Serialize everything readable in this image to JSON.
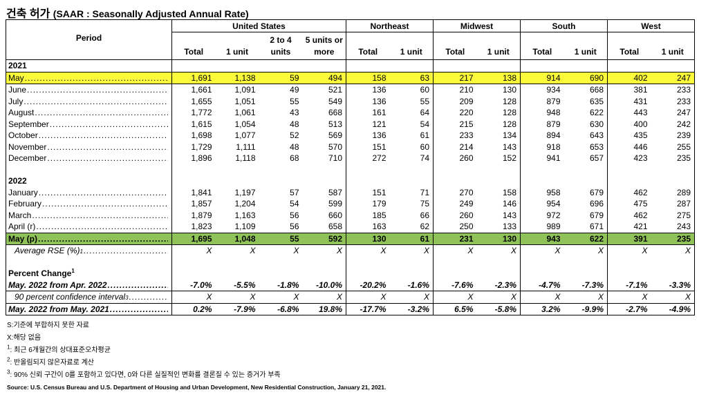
{
  "title": "건축 허가",
  "subtitle": "(SAAR : Seasonally Adjusted Annual Rate)",
  "table": {
    "period_header": "Period",
    "groups": [
      {
        "name": "United States",
        "columns": [
          "Total",
          "1 unit",
          "2 to 4 units",
          "5 units or more"
        ]
      },
      {
        "name": "Northeast",
        "columns": [
          "Total",
          "1 unit"
        ]
      },
      {
        "name": "Midwest",
        "columns": [
          "Total",
          "1 unit"
        ]
      },
      {
        "name": "South",
        "columns": [
          "Total",
          "1 unit"
        ]
      },
      {
        "name": "West",
        "columns": [
          "Total",
          "1 unit"
        ]
      }
    ],
    "sections": [
      {
        "heading": "2021",
        "rows": [
          {
            "label": "May",
            "highlight": "#fbfb3c",
            "values": [
              "1,691",
              "1,138",
              "59",
              "494",
              "158",
              "63",
              "217",
              "138",
              "914",
              "690",
              "402",
              "247"
            ]
          },
          {
            "label": "June",
            "values": [
              "1,661",
              "1,091",
              "49",
              "521",
              "136",
              "60",
              "210",
              "130",
              "934",
              "668",
              "381",
              "233"
            ]
          },
          {
            "label": "July",
            "values": [
              "1,655",
              "1,051",
              "55",
              "549",
              "136",
              "55",
              "209",
              "128",
              "879",
              "635",
              "431",
              "233"
            ]
          },
          {
            "label": "August",
            "values": [
              "1,772",
              "1,061",
              "43",
              "668",
              "161",
              "64",
              "220",
              "128",
              "948",
              "622",
              "443",
              "247"
            ]
          },
          {
            "label": "September",
            "values": [
              "1,615",
              "1,054",
              "48",
              "513",
              "121",
              "54",
              "215",
              "128",
              "879",
              "630",
              "400",
              "242"
            ]
          },
          {
            "label": "October",
            "values": [
              "1,698",
              "1,077",
              "52",
              "569",
              "136",
              "61",
              "233",
              "134",
              "894",
              "643",
              "435",
              "239"
            ]
          },
          {
            "label": "November",
            "values": [
              "1,729",
              "1,111",
              "48",
              "570",
              "151",
              "60",
              "214",
              "143",
              "918",
              "653",
              "446",
              "255"
            ]
          },
          {
            "label": "December",
            "values": [
              "1,896",
              "1,118",
              "68",
              "710",
              "272",
              "74",
              "260",
              "152",
              "941",
              "657",
              "423",
              "235"
            ]
          }
        ]
      },
      {
        "heading": "2022",
        "rows": [
          {
            "label": "January",
            "values": [
              "1,841",
              "1,197",
              "57",
              "587",
              "151",
              "71",
              "270",
              "158",
              "958",
              "679",
              "462",
              "289"
            ]
          },
          {
            "label": "February",
            "values": [
              "1,857",
              "1,204",
              "54",
              "599",
              "179",
              "75",
              "249",
              "146",
              "954",
              "696",
              "475",
              "287"
            ]
          },
          {
            "label": "March",
            "values": [
              "1,879",
              "1,163",
              "56",
              "660",
              "185",
              "66",
              "260",
              "143",
              "972",
              "679",
              "462",
              "275"
            ]
          },
          {
            "label": "April (r)",
            "values": [
              "1,823",
              "1,109",
              "56",
              "658",
              "163",
              "62",
              "250",
              "133",
              "989",
              "671",
              "421",
              "243"
            ]
          },
          {
            "label": "May (p)",
            "highlight": "#8fc35a",
            "bold": true,
            "values": [
              "1,695",
              "1,048",
              "55",
              "592",
              "130",
              "61",
              "231",
              "130",
              "943",
              "622",
              "391",
              "235"
            ]
          },
          {
            "label": "Average RSE (%)",
            "sup": "1",
            "italic": true,
            "indent": true,
            "values": [
              "X",
              "X",
              "X",
              "X",
              "X",
              "X",
              "X",
              "X",
              "X",
              "X",
              "X",
              "X"
            ]
          }
        ]
      },
      {
        "heading": "Percent Change",
        "heading_sup": "1",
        "rows": [
          {
            "label": "May. 2022 from Apr. 2022",
            "bold": true,
            "italic": true,
            "values": [
              "-7.0%",
              "-5.5%",
              "-1.8%",
              "-10.0%",
              "-20.2%",
              "-1.6%",
              "-7.6%",
              "-2.3%",
              "-4.7%",
              "-7.3%",
              "-7.1%",
              "-3.3%"
            ]
          },
          {
            "label": "90 percent confidence interval",
            "sup": "3",
            "italic": true,
            "indent": true,
            "values": [
              "X",
              "X",
              "X",
              "X",
              "X",
              "X",
              "X",
              "X",
              "X",
              "X",
              "X",
              "X"
            ]
          },
          {
            "label": "May. 2022 from May. 2021",
            "bold": true,
            "italic": true,
            "values": [
              "0.2%",
              "-7.9%",
              "-6.8%",
              "19.8%",
              "-17.7%",
              "-3.2%",
              "6.5%",
              "-5.8%",
              "3.2%",
              "-9.9%",
              "-2.7%",
              "-4.9%"
            ]
          }
        ]
      }
    ]
  },
  "footnotes": [
    {
      "text": "S:기준에 부합하지 못한 자료"
    },
    {
      "text": "X:해당 없음"
    },
    {
      "sup": "1",
      "text": ": 최근 6개월간의 상대표준오차평균"
    },
    {
      "sup": "2",
      "text": ": 반올림되지 않은자료로 계산"
    },
    {
      "sup": "3",
      "text": ": 90% 신뢰 구간이 0를 포함하고 있다면, 0와 다른 실질적인 변화를 결론질 수 있는 증거가 부족"
    }
  ],
  "source": "Source: U.S. Census Bureau and U.S. Department of Housing and Urban Development, New Residential Construction, January 21, 2021."
}
